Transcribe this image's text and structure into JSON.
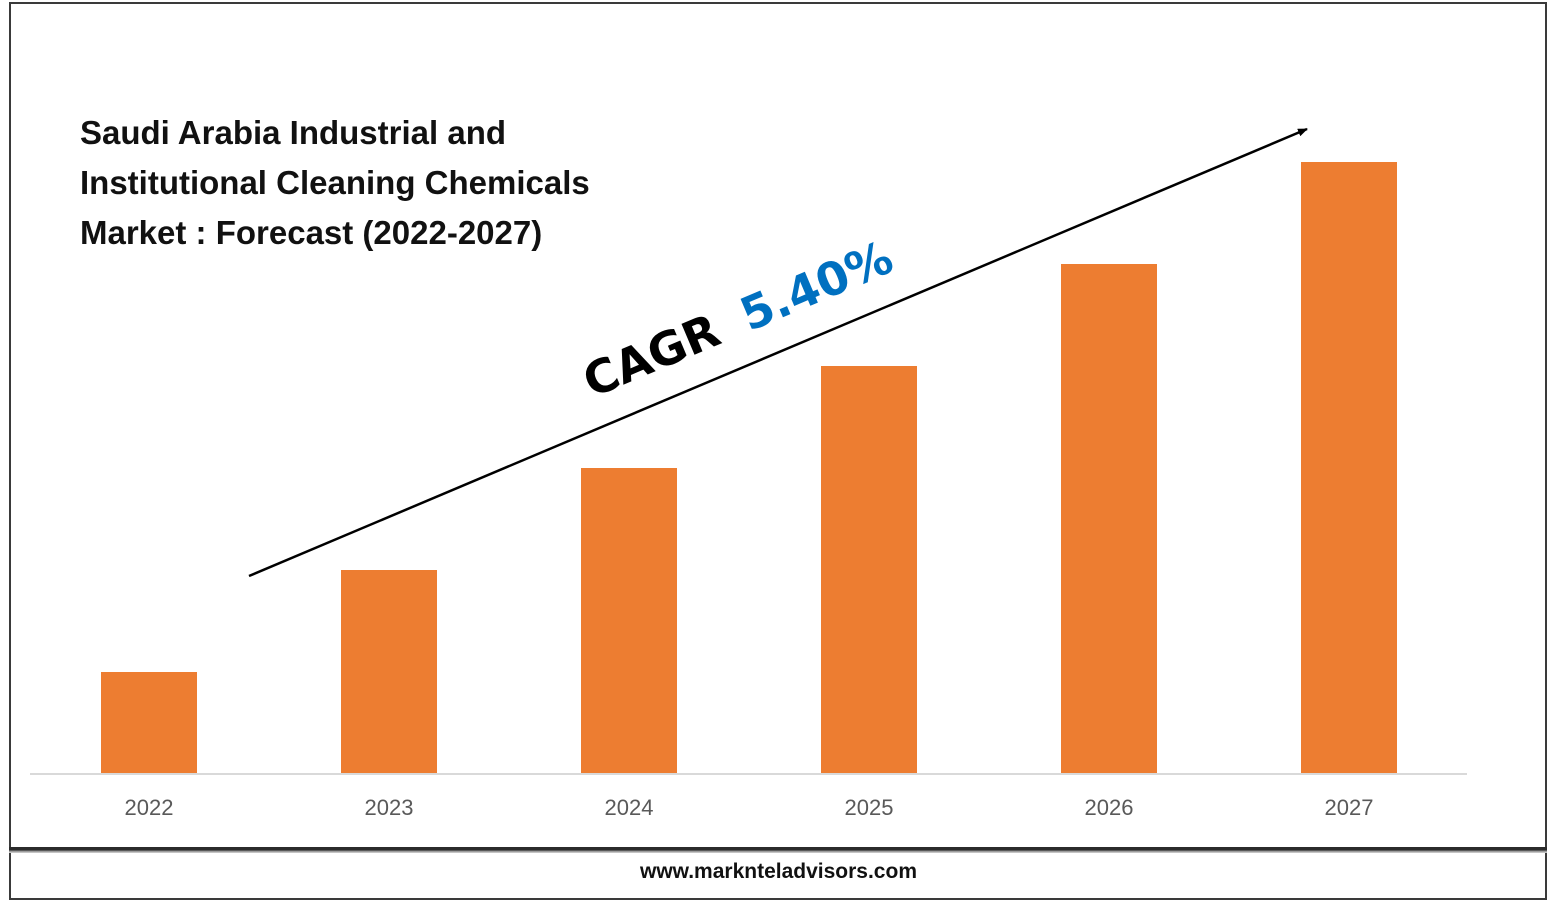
{
  "title_lines": [
    "Saudi Arabia Industrial and",
    "Institutional Cleaning Chemicals",
    "Market : Forecast (2022-2027)"
  ],
  "annotation": {
    "label": "CAGR",
    "value": "5.40%",
    "label_color": "#000000",
    "value_color": "#0070C0"
  },
  "footer": {
    "url": "www.marknteladvisors.com"
  },
  "colors": {
    "bar": "#ED7D31",
    "axis": "#D9D9D9",
    "tick_text": "#595959",
    "arrow": "#000000"
  },
  "chart_data": {
    "type": "bar",
    "title": "Saudi Arabia Industrial and Institutional Cleaning Chemicals Market : Forecast (2022-2027)",
    "categories": [
      "2022",
      "2023",
      "2024",
      "2025",
      "2026",
      "2027"
    ],
    "values": [
      1,
      2,
      3,
      4,
      5,
      6
    ],
    "ylim": [
      0,
      6
    ],
    "xlabel": "",
    "ylabel": "",
    "grid": false,
    "legend": "none",
    "y_axis_visible": false,
    "annotation_arrow": "upward trend arrow spanning the bars"
  }
}
